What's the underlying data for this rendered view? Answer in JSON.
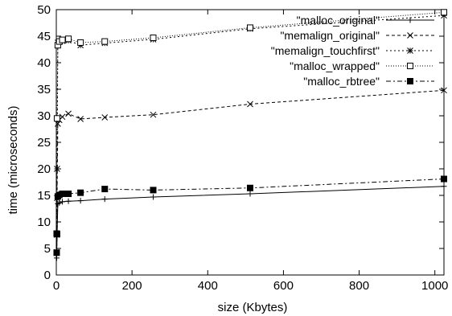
{
  "chart_data": {
    "type": "line",
    "title": "",
    "xlabel": "size (Kbytes)",
    "ylabel": "time (microseconds)",
    "xlim": [
      0,
      1024
    ],
    "ylim": [
      0,
      50
    ],
    "xticks": [
      0,
      200,
      400,
      600,
      800,
      1000
    ],
    "yticks": [
      0,
      5,
      10,
      15,
      20,
      25,
      30,
      35,
      40,
      45,
      50
    ],
    "grid": false,
    "legend_position": "top-right",
    "series": [
      {
        "name": "\"malloc_original\"",
        "style": "solid",
        "marker": "plus",
        "points": [
          [
            1,
            3.2
          ],
          [
            2,
            7.5
          ],
          [
            4,
            13.4
          ],
          [
            8,
            13.6
          ],
          [
            16,
            13.8
          ],
          [
            32,
            13.9
          ],
          [
            64,
            14.0
          ],
          [
            128,
            14.3
          ],
          [
            256,
            14.7
          ],
          [
            512,
            15.3
          ],
          [
            1024,
            16.7
          ]
        ]
      },
      {
        "name": "\"memalign_original\"",
        "style": "dashed",
        "marker": "x",
        "points": [
          [
            1,
            4.3
          ],
          [
            2,
            14.5
          ],
          [
            4,
            28.5
          ],
          [
            8,
            29.2
          ],
          [
            16,
            29.8
          ],
          [
            32,
            30.4
          ],
          [
            64,
            29.4
          ],
          [
            128,
            29.7
          ],
          [
            256,
            30.2
          ],
          [
            512,
            32.2
          ],
          [
            1024,
            34.8
          ]
        ]
      },
      {
        "name": "\"memalign_touchfirst\"",
        "style": "dotted",
        "marker": "star",
        "points": [
          [
            1,
            7.6
          ],
          [
            2,
            20.0
          ],
          [
            4,
            43.8
          ],
          [
            8,
            43.9
          ],
          [
            16,
            44.1
          ],
          [
            32,
            44.2
          ],
          [
            64,
            43.3
          ],
          [
            128,
            43.7
          ],
          [
            256,
            44.4
          ],
          [
            512,
            46.4
          ],
          [
            1024,
            48.9
          ]
        ]
      },
      {
        "name": "\"malloc_wrapped\"",
        "style": "dense-dotted",
        "marker": "square",
        "points": [
          [
            1,
            7.8
          ],
          [
            2,
            29.5
          ],
          [
            4,
            43.3
          ],
          [
            8,
            44.0
          ],
          [
            16,
            44.3
          ],
          [
            32,
            44.5
          ],
          [
            64,
            43.8
          ],
          [
            128,
            44.0
          ],
          [
            256,
            44.7
          ],
          [
            512,
            46.6
          ],
          [
            1024,
            49.5
          ]
        ]
      },
      {
        "name": "\"malloc_rbtree\"",
        "style": "dashdot",
        "marker": "filled-square",
        "points": [
          [
            1,
            4.2
          ],
          [
            2,
            7.7
          ],
          [
            4,
            14.8
          ],
          [
            8,
            15.1
          ],
          [
            16,
            15.3
          ],
          [
            32,
            15.3
          ],
          [
            64,
            15.5
          ],
          [
            128,
            16.2
          ],
          [
            256,
            16.0
          ],
          [
            512,
            16.4
          ],
          [
            1024,
            18.1
          ]
        ]
      }
    ]
  }
}
